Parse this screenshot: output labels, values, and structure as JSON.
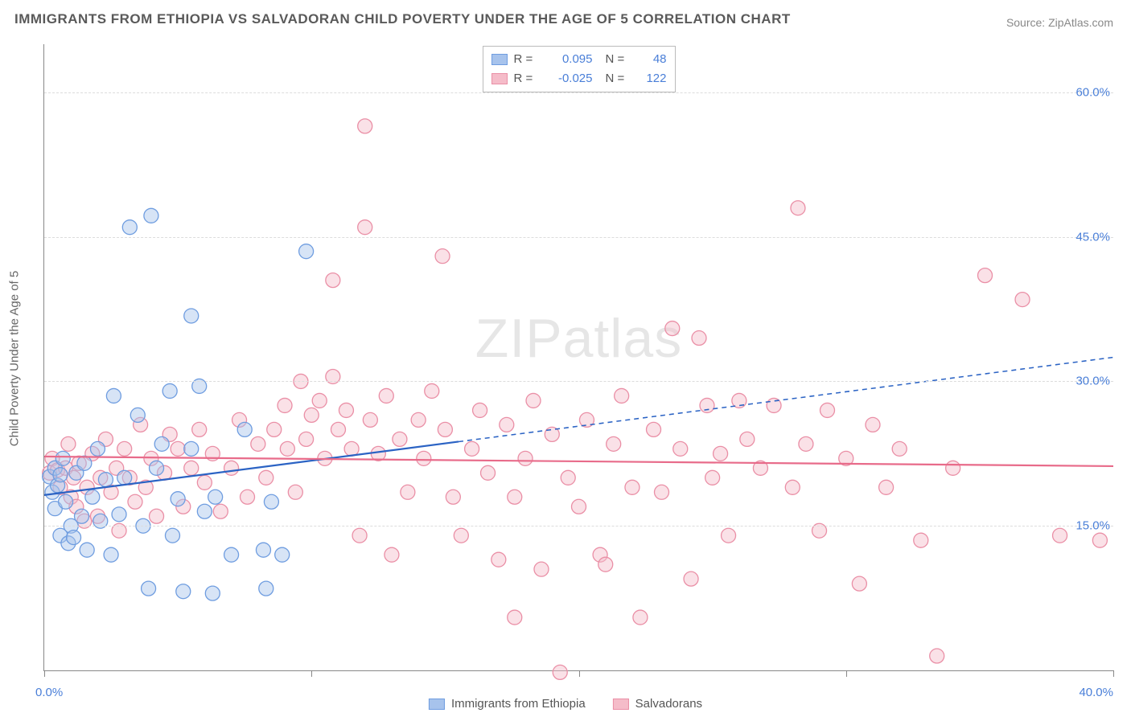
{
  "title": "IMMIGRANTS FROM ETHIOPIA VS SALVADORAN CHILD POVERTY UNDER THE AGE OF 5 CORRELATION CHART",
  "source": "Source: ZipAtlas.com",
  "watermark": "ZIPatlas",
  "ylabel": "Child Poverty Under the Age of 5",
  "chart": {
    "type": "scatter",
    "xlim": [
      0,
      40
    ],
    "ylim": [
      0,
      65
    ],
    "xtick_positions": [
      0,
      10,
      20,
      30,
      40
    ],
    "xtick_labels": [
      "0.0%",
      "",
      "",
      "",
      "40.0%"
    ],
    "ytick_positions": [
      15,
      30,
      45,
      60
    ],
    "ytick_labels": [
      "15.0%",
      "30.0%",
      "45.0%",
      "60.0%"
    ],
    "background_color": "#ffffff",
    "grid_color": "#dcdcdc",
    "marker_radius": 9,
    "marker_opacity": 0.45,
    "series": [
      {
        "name": "Immigrants from Ethiopia",
        "color_fill": "#a7c3ec",
        "color_stroke": "#6f9de0",
        "R": "0.095",
        "N": "48",
        "trend": {
          "y_at_xmin": 18.2,
          "y_at_xmax": 32.5,
          "solid_until_x": 15.5,
          "color": "#2b63c4",
          "width": 2.2
        },
        "points": [
          [
            0.2,
            20.1
          ],
          [
            0.3,
            18.5
          ],
          [
            0.4,
            21.0
          ],
          [
            0.4,
            16.8
          ],
          [
            0.5,
            19.2
          ],
          [
            0.6,
            20.3
          ],
          [
            0.6,
            14.0
          ],
          [
            0.7,
            22.0
          ],
          [
            0.8,
            17.5
          ],
          [
            0.9,
            13.2
          ],
          [
            1.0,
            15.0
          ],
          [
            1.1,
            13.8
          ],
          [
            1.2,
            20.5
          ],
          [
            1.4,
            16.0
          ],
          [
            1.5,
            21.5
          ],
          [
            1.6,
            12.5
          ],
          [
            1.8,
            18.0
          ],
          [
            2.0,
            23.0
          ],
          [
            2.1,
            15.5
          ],
          [
            2.3,
            19.8
          ],
          [
            2.5,
            12.0
          ],
          [
            2.6,
            28.5
          ],
          [
            2.8,
            16.2
          ],
          [
            3.0,
            20.0
          ],
          [
            3.2,
            46.0
          ],
          [
            3.5,
            26.5
          ],
          [
            3.7,
            15.0
          ],
          [
            3.9,
            8.5
          ],
          [
            4.0,
            47.2
          ],
          [
            4.2,
            21.0
          ],
          [
            4.4,
            23.5
          ],
          [
            4.7,
            29.0
          ],
          [
            4.8,
            14.0
          ],
          [
            5.0,
            17.8
          ],
          [
            5.2,
            8.2
          ],
          [
            5.5,
            36.8
          ],
          [
            5.5,
            23.0
          ],
          [
            5.8,
            29.5
          ],
          [
            6.0,
            16.5
          ],
          [
            6.4,
            18.0
          ],
          [
            6.3,
            8.0
          ],
          [
            7.0,
            12.0
          ],
          [
            7.5,
            25.0
          ],
          [
            8.2,
            12.5
          ],
          [
            8.3,
            8.5
          ],
          [
            8.5,
            17.5
          ],
          [
            8.9,
            12.0
          ],
          [
            9.8,
            43.5
          ]
        ]
      },
      {
        "name": "Salvadorans",
        "color_fill": "#f5bcc9",
        "color_stroke": "#ea8fa6",
        "R": "-0.025",
        "N": "122",
        "trend": {
          "y_at_xmin": 22.2,
          "y_at_xmax": 21.2,
          "solid_until_x": 40,
          "color": "#e86b8a",
          "width": 2.2
        },
        "points": [
          [
            0.2,
            20.5
          ],
          [
            0.3,
            22.0
          ],
          [
            0.5,
            20.8
          ],
          [
            0.6,
            19.0
          ],
          [
            0.8,
            21.0
          ],
          [
            0.9,
            23.5
          ],
          [
            1.0,
            18.0
          ],
          [
            1.1,
            20.0
          ],
          [
            1.2,
            17.0
          ],
          [
            1.3,
            21.5
          ],
          [
            1.5,
            15.5
          ],
          [
            1.6,
            19.0
          ],
          [
            1.8,
            22.5
          ],
          [
            2.0,
            16.0
          ],
          [
            2.1,
            20.0
          ],
          [
            2.3,
            24.0
          ],
          [
            2.5,
            18.5
          ],
          [
            2.7,
            21.0
          ],
          [
            2.8,
            14.5
          ],
          [
            3.0,
            23.0
          ],
          [
            3.2,
            20.0
          ],
          [
            3.4,
            17.5
          ],
          [
            3.6,
            25.5
          ],
          [
            3.8,
            19.0
          ],
          [
            4.0,
            22.0
          ],
          [
            4.2,
            16.0
          ],
          [
            4.5,
            20.5
          ],
          [
            4.7,
            24.5
          ],
          [
            5.0,
            23.0
          ],
          [
            5.2,
            17.0
          ],
          [
            5.5,
            21.0
          ],
          [
            5.8,
            25.0
          ],
          [
            6.0,
            19.5
          ],
          [
            6.3,
            22.5
          ],
          [
            6.6,
            16.5
          ],
          [
            7.0,
            21.0
          ],
          [
            7.3,
            26.0
          ],
          [
            7.6,
            18.0
          ],
          [
            8.0,
            23.5
          ],
          [
            8.3,
            20.0
          ],
          [
            8.6,
            25.0
          ],
          [
            9.0,
            27.5
          ],
          [
            9.1,
            23.0
          ],
          [
            9.4,
            18.5
          ],
          [
            9.6,
            30.0
          ],
          [
            9.8,
            24.0
          ],
          [
            10.0,
            26.5
          ],
          [
            10.3,
            28.0
          ],
          [
            10.5,
            22.0
          ],
          [
            10.8,
            30.5
          ],
          [
            10.8,
            40.5
          ],
          [
            11.0,
            25.0
          ],
          [
            11.3,
            27.0
          ],
          [
            11.5,
            23.0
          ],
          [
            11.8,
            14.0
          ],
          [
            12.0,
            56.5
          ],
          [
            12.0,
            46.0
          ],
          [
            12.2,
            26.0
          ],
          [
            12.5,
            22.5
          ],
          [
            12.8,
            28.5
          ],
          [
            13.0,
            12.0
          ],
          [
            13.3,
            24.0
          ],
          [
            13.6,
            18.5
          ],
          [
            14.0,
            26.0
          ],
          [
            14.2,
            22.0
          ],
          [
            14.5,
            29.0
          ],
          [
            14.9,
            43.0
          ],
          [
            15.0,
            25.0
          ],
          [
            15.3,
            18.0
          ],
          [
            15.6,
            14.0
          ],
          [
            16.0,
            23.0
          ],
          [
            16.3,
            27.0
          ],
          [
            16.6,
            20.5
          ],
          [
            17.0,
            11.5
          ],
          [
            17.3,
            25.5
          ],
          [
            17.6,
            18.0
          ],
          [
            17.6,
            5.5
          ],
          [
            18.0,
            22.0
          ],
          [
            18.3,
            28.0
          ],
          [
            18.6,
            10.5
          ],
          [
            19.0,
            24.5
          ],
          [
            19.3,
            -0.2
          ],
          [
            19.6,
            20.0
          ],
          [
            20.0,
            17.0
          ],
          [
            20.3,
            26.0
          ],
          [
            20.8,
            12.0
          ],
          [
            21.0,
            11.0
          ],
          [
            21.3,
            23.5
          ],
          [
            21.6,
            28.5
          ],
          [
            22.0,
            19.0
          ],
          [
            22.3,
            5.5
          ],
          [
            22.8,
            25.0
          ],
          [
            23.1,
            18.5
          ],
          [
            23.5,
            35.5
          ],
          [
            23.8,
            23.0
          ],
          [
            24.2,
            9.5
          ],
          [
            24.5,
            34.5
          ],
          [
            24.8,
            27.5
          ],
          [
            25.0,
            20.0
          ],
          [
            25.3,
            22.5
          ],
          [
            25.6,
            14.0
          ],
          [
            26.0,
            28.0
          ],
          [
            26.3,
            24.0
          ],
          [
            26.8,
            21.0
          ],
          [
            27.3,
            27.5
          ],
          [
            28.0,
            19.0
          ],
          [
            28.2,
            48.0
          ],
          [
            28.5,
            23.5
          ],
          [
            29.0,
            14.5
          ],
          [
            29.3,
            27.0
          ],
          [
            30.0,
            22.0
          ],
          [
            30.5,
            9.0
          ],
          [
            31.0,
            25.5
          ],
          [
            31.5,
            19.0
          ],
          [
            32.0,
            23.0
          ],
          [
            32.8,
            13.5
          ],
          [
            33.4,
            1.5
          ],
          [
            34.0,
            21.0
          ],
          [
            35.2,
            41.0
          ],
          [
            36.6,
            38.5
          ],
          [
            38.0,
            14.0
          ],
          [
            39.5,
            13.5
          ]
        ]
      }
    ]
  },
  "legend_bottom": [
    {
      "label": "Immigrants from Ethiopia",
      "fill": "#a7c3ec",
      "stroke": "#6f9de0"
    },
    {
      "label": "Salvadorans",
      "fill": "#f5bcc9",
      "stroke": "#ea8fa6"
    }
  ]
}
